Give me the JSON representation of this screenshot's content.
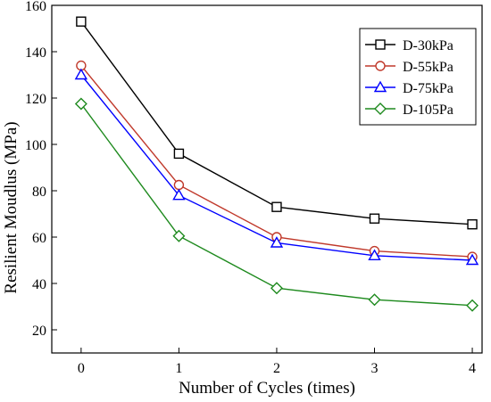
{
  "chart_data": {
    "type": "line",
    "title": "",
    "xlabel": "Number of Cycles (times)",
    "ylabel": "Resilient Moudlus (MPa)",
    "x": [
      0,
      1,
      2,
      3,
      4
    ],
    "x_ticks": [
      "0",
      "1",
      "2",
      "3",
      "4"
    ],
    "y_ticks": [
      "20",
      "40",
      "60",
      "80",
      "100",
      "120",
      "140",
      "160"
    ],
    "xlim": [
      -0.3,
      4.1
    ],
    "ylim": [
      10,
      160
    ],
    "grid": false,
    "legend_position": "top-right",
    "series": [
      {
        "name": "D-30kPa",
        "values": [
          153,
          96,
          73,
          68,
          65.5
        ],
        "color": "#000000",
        "marker": "square"
      },
      {
        "name": "D-55kPa",
        "values": [
          134,
          82.5,
          60,
          54,
          51.5
        ],
        "color": "#c0392b",
        "marker": "circle"
      },
      {
        "name": "D-75kPa",
        "values": [
          130,
          78,
          57.5,
          52,
          50
        ],
        "color": "#0000ff",
        "marker": "triangle"
      },
      {
        "name": "D-105Pa",
        "values": [
          117.5,
          60.5,
          38,
          33,
          30.5
        ],
        "color": "#1e8a1e",
        "marker": "diamond"
      }
    ]
  }
}
